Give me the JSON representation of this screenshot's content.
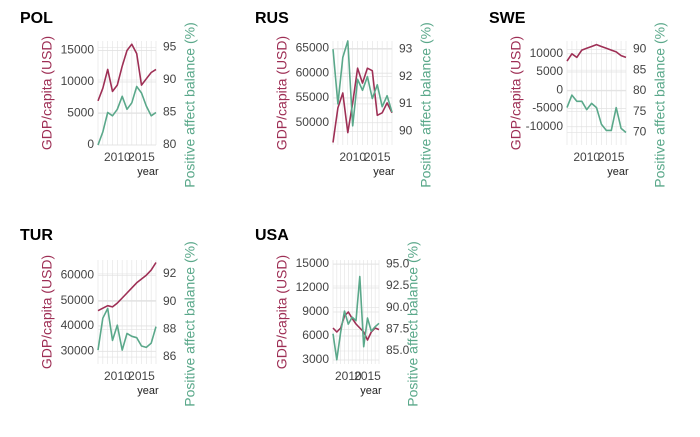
{
  "chart_data": [
    {
      "type": "line",
      "title": "POL",
      "x": [
        2006,
        2007,
        2008,
        2009,
        2010,
        2011,
        2012,
        2013,
        2014,
        2015,
        2016,
        2017,
        2018
      ],
      "xticks": [
        2010,
        2015
      ],
      "xlabel": "year",
      "series": [
        {
          "axis": "left",
          "color": "#9e2f55",
          "values": [
            7000,
            9000,
            12000,
            8500,
            9500,
            12500,
            15000,
            16000,
            14500,
            9500,
            10500,
            11500,
            12000
          ]
        },
        {
          "axis": "right",
          "color": "#5aa88a",
          "values": [
            80,
            82,
            85,
            84.5,
            85.5,
            87.5,
            85.5,
            86.5,
            89,
            88,
            86,
            84.5,
            85
          ]
        }
      ],
      "yleft": {
        "label": "GDP/capita (USD)",
        "ticks": [
          0,
          5000,
          10000,
          15000
        ],
        "tick_labels": [
          "0",
          "5000",
          "10000",
          "15000"
        ],
        "range": [
          0,
          16500
        ]
      },
      "yright": {
        "label": "Positive affect balance (%)",
        "ticks": [
          80,
          85,
          90,
          95
        ],
        "tick_labels": [
          "80",
          "85",
          "90",
          "95"
        ],
        "range": [
          80,
          96
        ]
      }
    },
    {
      "type": "line",
      "title": "RUS",
      "x": [
        2006,
        2007,
        2008,
        2009,
        2010,
        2011,
        2012,
        2013,
        2014,
        2015,
        2016,
        2017,
        2018
      ],
      "xticks": [
        2010,
        2015
      ],
      "xlabel": "year",
      "series": [
        {
          "axis": "left",
          "color": "#9e2f55",
          "values": [
            46000,
            53000,
            56000,
            48000,
            54000,
            61000,
            58000,
            61000,
            60500,
            51500,
            52000,
            54000,
            52000
          ]
        },
        {
          "axis": "right",
          "color": "#5aa88a",
          "values": [
            93,
            91,
            92.7,
            93.3,
            90.2,
            91.9,
            91.5,
            92,
            91.2,
            91.7,
            90.9,
            91.3,
            90.7
          ]
        }
      ],
      "yleft": {
        "label": "GDP/capita (USD)",
        "ticks": [
          50000,
          55000,
          60000,
          65000
        ],
        "tick_labels": [
          "50000",
          "55000",
          "60000",
          "65000"
        ],
        "range": [
          45500,
          66500
        ]
      },
      "yright": {
        "label": "Positive affect balance (%)",
        "ticks": [
          90,
          91,
          92,
          93
        ],
        "tick_labels": [
          "90",
          "91",
          "92",
          "93"
        ],
        "range": [
          89.5,
          93.3
        ]
      }
    },
    {
      "type": "line",
      "title": "SWE",
      "x": [
        2006,
        2007,
        2008,
        2009,
        2010,
        2011,
        2012,
        2013,
        2014,
        2015,
        2016,
        2017,
        2018
      ],
      "xticks": [
        2010,
        2015
      ],
      "xlabel": "year",
      "series": [
        {
          "axis": "left",
          "color": "#9e2f55",
          "values": [
            8000,
            10000,
            9000,
            11000,
            11500,
            12000,
            12500,
            12000,
            11500,
            11000,
            10500,
            9500,
            9000
          ]
        },
        {
          "axis": "right",
          "color": "#5aa88a",
          "values": [
            76,
            79,
            77.5,
            77.5,
            75.5,
            77,
            76,
            72,
            70.5,
            70.5,
            76,
            71,
            70
          ]
        }
      ],
      "yleft": {
        "label": "GDP/capita (USD)",
        "ticks": [
          -10000,
          -5000,
          0,
          5000,
          10000
        ],
        "tick_labels": [
          "-10000",
          "-5000",
          "0",
          "5000",
          "10000"
        ],
        "range": [
          -15000,
          13500
        ]
      },
      "yright": {
        "label": "Positive affect balance (%)",
        "ticks": [
          70,
          75,
          80,
          85,
          90
        ],
        "tick_labels": [
          "70",
          "75",
          "80",
          "85",
          "90"
        ],
        "range": [
          67,
          92
        ]
      }
    },
    {
      "type": "line",
      "title": "TUR",
      "x": [
        2006,
        2007,
        2008,
        2009,
        2010,
        2011,
        2012,
        2013,
        2014,
        2015,
        2016,
        2017,
        2018
      ],
      "xticks": [
        2010,
        2015
      ],
      "xlabel": "year",
      "series": [
        {
          "axis": "left",
          "color": "#9e2f55",
          "values": [
            46000,
            47000,
            48000,
            47500,
            49000,
            51000,
            53000,
            55000,
            57000,
            58500,
            60000,
            62000,
            65000
          ]
        },
        {
          "axis": "right",
          "color": "#5aa88a",
          "values": [
            86.5,
            88.8,
            89.5,
            87.2,
            88.3,
            86.5,
            87.7,
            87.5,
            87.4,
            86.8,
            86.7,
            87,
            88.2
          ]
        }
      ],
      "yleft": {
        "label": "GDP/capita (USD)",
        "ticks": [
          30000,
          40000,
          50000,
          60000
        ],
        "tick_labels": [
          "30000",
          "40000",
          "50000",
          "60000"
        ],
        "range": [
          25000,
          66000
        ]
      },
      "yright": {
        "label": "Positive affect balance (%)",
        "ticks": [
          86,
          88,
          90,
          92
        ],
        "tick_labels": [
          "86",
          "88",
          "90",
          "92"
        ],
        "range": [
          85.5,
          93
        ]
      }
    },
    {
      "type": "line",
      "title": "USA",
      "x": [
        2006,
        2007,
        2008,
        2009,
        2010,
        2011,
        2012,
        2013,
        2014,
        2015,
        2016,
        2017,
        2018
      ],
      "xticks": [
        2010,
        2015
      ],
      "xlabel": "year",
      "series": [
        {
          "axis": "left",
          "color": "#9e2f55",
          "values": [
            7000,
            6500,
            7000,
            8500,
            9000,
            8200,
            7500,
            7000,
            6500,
            5500,
            6500,
            7000,
            6800
          ]
        },
        {
          "axis": "right",
          "color": "#5aa88a",
          "values": [
            87,
            84,
            87.2,
            89.6,
            88.1,
            88.9,
            88.5,
            93.6,
            85.5,
            88.8,
            87.3,
            87.8,
            88.2
          ]
        }
      ],
      "yleft": {
        "label": "GDP/capita (USD)",
        "ticks": [
          3000,
          6000,
          9000,
          12000,
          15000
        ],
        "tick_labels": [
          "3000",
          "6000",
          "9000",
          "12000",
          "15000"
        ],
        "range": [
          2500,
          15500
        ]
      },
      "yright": {
        "label": "Positive affect balance (%)",
        "ticks": [
          85,
          87.5,
          90,
          92.5,
          95
        ],
        "tick_labels": [
          "85.0",
          "87.5",
          "90.0",
          "92.5",
          "95.0"
        ],
        "range": [
          83.5,
          95.5
        ]
      }
    }
  ]
}
